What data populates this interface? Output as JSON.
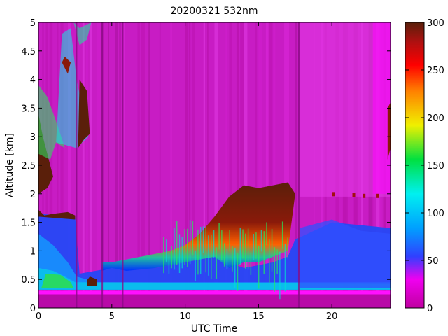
{
  "chart_data": {
    "type": "heatmap",
    "title": "20200321 532nm",
    "xlabel": "UTC Time",
    "ylabel": "Altitude [km]",
    "xlim": [
      0,
      24
    ],
    "ylim": [
      0,
      5
    ],
    "clim": [
      0,
      300
    ],
    "colormap": "hsv-like (magenta-blue-cyan-green-yellow-red-dark red)",
    "x_ticks": [
      0,
      5,
      10,
      15,
      20
    ],
    "y_ticks": [
      0,
      0.5,
      1,
      1.5,
      2,
      2.5,
      3,
      3.5,
      4,
      4.5,
      5
    ],
    "colorbar_ticks": [
      0,
      50,
      100,
      150,
      200,
      250,
      300
    ],
    "x_tick_labels": [
      "0",
      "5",
      "10",
      "15",
      "20"
    ],
    "y_tick_labels": [
      "0",
      "0.5",
      "1",
      "1.5",
      "2",
      "2.5",
      "3",
      "3.5",
      "4",
      "4.5",
      "5"
    ],
    "colorbar_tick_labels": [
      "0",
      "50",
      "100",
      "150",
      "200",
      "250",
      "300"
    ],
    "cloud_top_km": [
      [
        0,
        1.7
      ],
      [
        2.5,
        1.65
      ],
      [
        3,
        0.55
      ],
      [
        3.5,
        0.4
      ],
      [
        4,
        0.35
      ],
      [
        4.3,
        0.8
      ],
      [
        5,
        0.8
      ],
      [
        6,
        0.85
      ],
      [
        7,
        0.9
      ],
      [
        8,
        0.95
      ],
      [
        9,
        1.0
      ],
      [
        10,
        1.1
      ],
      [
        11,
        1.3
      ],
      [
        12,
        1.6
      ],
      [
        13,
        1.95
      ],
      [
        14,
        2.15
      ],
      [
        15,
        2.1
      ],
      [
        16,
        2.15
      ],
      [
        17,
        2.2
      ],
      [
        17.5,
        2.0
      ],
      [
        19,
        2.0
      ],
      [
        20,
        2.0
      ],
      [
        22,
        1.95
      ],
      [
        24,
        1.9
      ]
    ],
    "cloud_base_km": [
      [
        4.3,
        0.65
      ],
      [
        5,
        0.7
      ],
      [
        6,
        0.65
      ],
      [
        8,
        0.7
      ],
      [
        10,
        0.8
      ],
      [
        12,
        0.9
      ],
      [
        13,
        0.7
      ],
      [
        14,
        0.8
      ],
      [
        15,
        0.8
      ],
      [
        16,
        0.9
      ],
      [
        17,
        1.0
      ]
    ],
    "high_cloud_km": [
      [
        0,
        3.4
      ],
      [
        0.5,
        3.0
      ],
      [
        1,
        2.5
      ],
      [
        2.3,
        4.2
      ],
      [
        3,
        3.2
      ],
      [
        3.5,
        3.1
      ],
      [
        23.8,
        2.9
      ]
    ]
  }
}
